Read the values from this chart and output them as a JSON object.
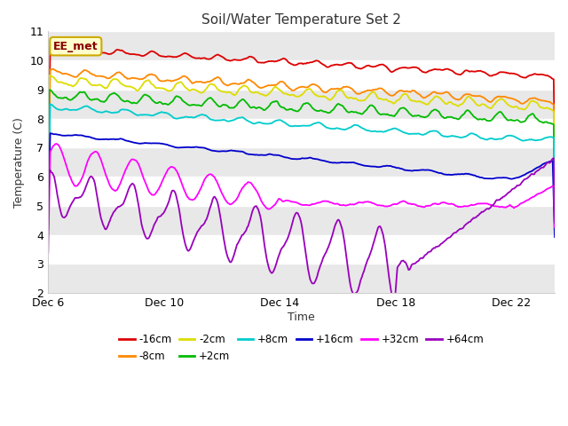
{
  "title": "Soil/Water Temperature Set 2",
  "xlabel": "Time",
  "ylabel": "Temperature (C)",
  "ylim": [
    2.0,
    11.0
  ],
  "yticks": [
    2.0,
    3.0,
    4.0,
    5.0,
    6.0,
    7.0,
    8.0,
    9.0,
    10.0,
    11.0
  ],
  "bg_color": "#ffffff",
  "plot_bg_color": "#ffffff",
  "annotation_text": "EE_met",
  "annotation_bg": "#ffffcc",
  "annotation_border": "#ccaa00",
  "series": [
    {
      "label": "-16cm",
      "color": "#dd0000"
    },
    {
      "label": "-8cm",
      "color": "#ff8800"
    },
    {
      "label": "-2cm",
      "color": "#dddd00"
    },
    {
      "label": "+2cm",
      "color": "#00bb00"
    },
    {
      "label": "+8cm",
      "color": "#00cccc"
    },
    {
      "label": "+16cm",
      "color": "#0000cc"
    },
    {
      "label": "+32cm",
      "color": "#ff00ff"
    },
    {
      "label": "+64cm",
      "color": "#9900bb"
    }
  ],
  "xtick_labels": [
    "Dec 6",
    "Dec 10",
    "Dec 14",
    "Dec 18",
    "Dec 22"
  ],
  "xtick_positions": [
    0,
    4,
    8,
    12,
    16
  ],
  "xlim": [
    0,
    17.5
  ]
}
